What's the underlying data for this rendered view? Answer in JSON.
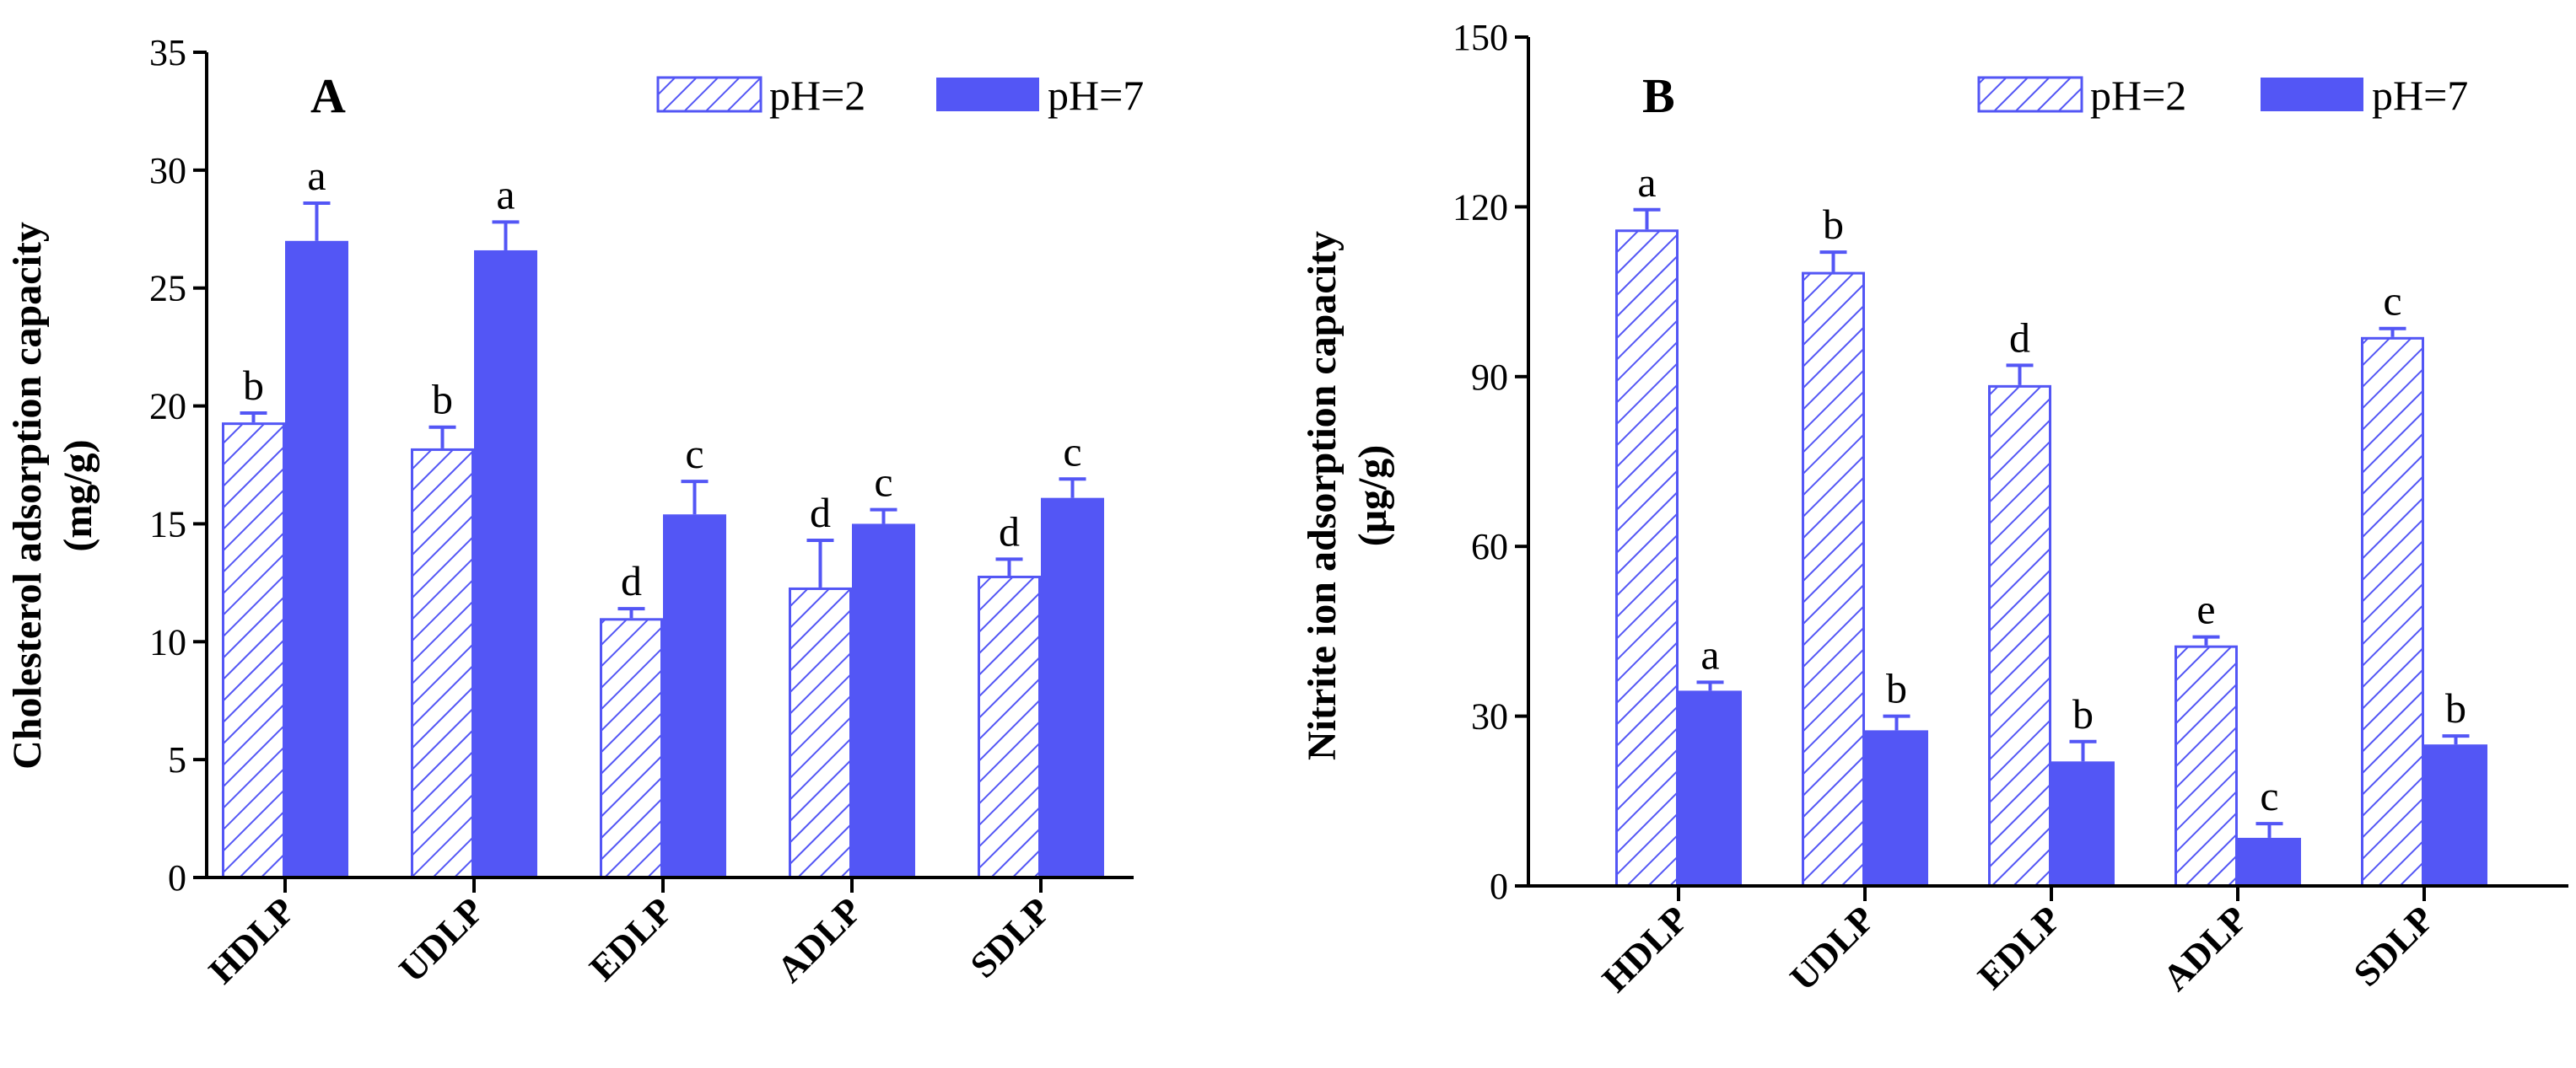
{
  "colors": {
    "series": "#5356F5",
    "axis": "#000000"
  },
  "chart_data": [
    {
      "type": "bar",
      "panel": "A",
      "ylabel_line1": "Cholesterol adsorption capacity",
      "ylabel_line2": "(mg/g)",
      "ylim": [
        0,
        35
      ],
      "yticks": [
        0,
        5,
        10,
        15,
        20,
        25,
        30,
        35
      ],
      "legend_position": "top-right",
      "categories": [
        "HDLP",
        "UDLP",
        "EDLP",
        "ADLP",
        "SDLP"
      ],
      "series": [
        {
          "name": "pH=2",
          "pattern": "hatched",
          "values": [
            19.3,
            18.2,
            11.0,
            12.3,
            12.8
          ],
          "errors": [
            0.4,
            0.9,
            0.4,
            2.0,
            0.7
          ],
          "letters": [
            "b",
            "b",
            "d",
            "d",
            "d"
          ]
        },
        {
          "name": "pH=7",
          "pattern": "solid",
          "values": [
            27.0,
            26.6,
            15.4,
            15.0,
            16.1
          ],
          "errors": [
            1.6,
            1.2,
            1.4,
            0.6,
            0.8
          ],
          "letters": [
            "a",
            "a",
            "c",
            "c",
            "c"
          ]
        }
      ]
    },
    {
      "type": "bar",
      "panel": "B",
      "ylabel_line1": "Nitrite ion adsorption capacity",
      "ylabel_line2": "(μg/g)",
      "ylim": [
        0,
        150
      ],
      "yticks": [
        0,
        30,
        60,
        90,
        120,
        150
      ],
      "legend_position": "top-right",
      "categories": [
        "HDLP",
        "UDLP",
        "EDLP",
        "ADLP",
        "SDLP"
      ],
      "series": [
        {
          "name": "pH=2",
          "pattern": "hatched",
          "values": [
            116,
            108.5,
            88.5,
            42.5,
            97
          ],
          "errors": [
            3.5,
            3.5,
            3.5,
            1.5,
            1.5
          ],
          "letters": [
            "a",
            "b",
            "d",
            "e",
            "c"
          ]
        },
        {
          "name": "pH=7",
          "pattern": "solid",
          "values": [
            34.5,
            27.5,
            22,
            8.5,
            25
          ],
          "errors": [
            1.5,
            2.5,
            3.5,
            2.5,
            1.5
          ],
          "letters": [
            "a",
            "b",
            "b",
            "c",
            "b"
          ]
        }
      ]
    }
  ]
}
